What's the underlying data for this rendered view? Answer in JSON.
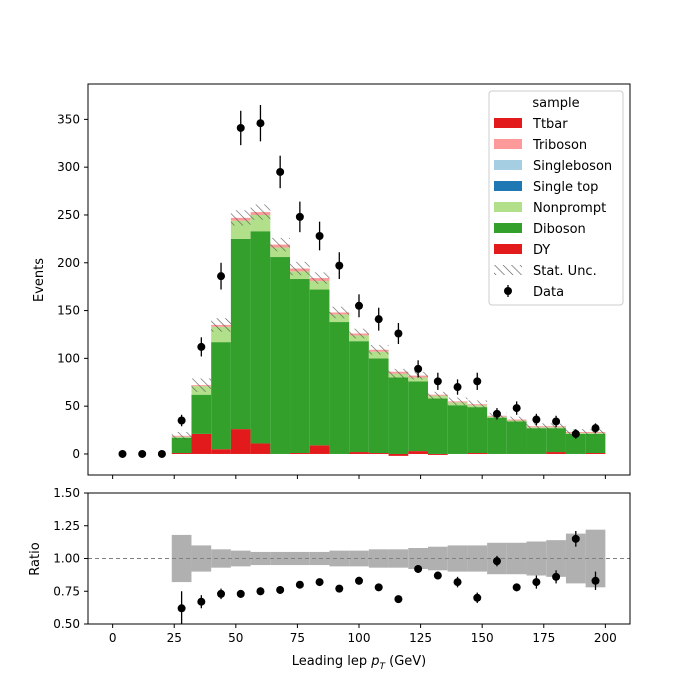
{
  "chart_data": {
    "type": "bar",
    "subtype": "stacked histogram with data points and ratio panel",
    "x_edges": [
      0,
      8,
      16,
      24,
      32,
      40,
      48,
      56,
      64,
      72,
      80,
      88,
      96,
      104,
      112,
      120,
      128,
      136,
      144,
      152,
      160,
      168,
      176,
      184,
      192,
      200
    ],
    "xlabel": "Leading lep $p_T$ (GeV)",
    "xlabel_main": "Leading lep ",
    "xlabel_sub": "T",
    "xlabel_unit": " (GeV)",
    "x_ticks": [
      "0",
      "25",
      "50",
      "75",
      "100",
      "125",
      "150",
      "175",
      "200"
    ],
    "x_tick_values": [
      0,
      25,
      50,
      75,
      100,
      125,
      150,
      175,
      200
    ],
    "xlim": [
      -10,
      210
    ],
    "top_panel": {
      "ylabel": "Events",
      "ylim": [
        -22,
        387
      ],
      "y_ticks": [
        "0",
        "50",
        "100",
        "150",
        "200",
        "250",
        "300",
        "350"
      ],
      "y_tick_values": [
        0,
        50,
        100,
        150,
        200,
        250,
        300,
        350
      ],
      "series": [
        {
          "name": "DY",
          "color": "#e31a1c",
          "values": [
            0,
            0,
            0,
            1,
            21,
            5,
            26,
            11,
            0,
            1,
            9,
            0,
            2,
            1,
            -2,
            3,
            -1,
            0,
            1,
            0,
            0,
            0,
            2,
            0,
            1
          ]
        },
        {
          "name": "Diboson",
          "color": "#33a02c",
          "values": [
            0,
            0,
            0,
            16,
            41,
            112,
            199,
            222,
            206,
            182,
            163,
            138,
            116,
            99,
            80,
            73,
            58,
            51,
            48,
            38,
            34,
            27,
            25,
            21,
            20
          ]
        },
        {
          "name": "Nonprompt",
          "color": "#b2df8a",
          "values": [
            0,
            0,
            0,
            1,
            9,
            16,
            19,
            17,
            10,
            8,
            9,
            8,
            6,
            7,
            4,
            4,
            3,
            3,
            2,
            1,
            1,
            1,
            1,
            1,
            1
          ]
        },
        {
          "name": "Single top",
          "color": "#1f78b4",
          "values": [
            0,
            0,
            0,
            0,
            0,
            0,
            0,
            0,
            0,
            0,
            0,
            0,
            0,
            0,
            0,
            0,
            0,
            0,
            0,
            0,
            0,
            0,
            0,
            0,
            0
          ]
        },
        {
          "name": "Singleboson",
          "color": "#a6cee3",
          "values": [
            0,
            0,
            0,
            0,
            0,
            0,
            0,
            0,
            0,
            0,
            0,
            0,
            0,
            0,
            0,
            0,
            0,
            0,
            0,
            0,
            0,
            0,
            0,
            0,
            0
          ]
        },
        {
          "name": "Triboson",
          "color": "#fb9a99",
          "values": [
            0,
            0,
            0,
            1,
            1,
            2,
            3,
            3,
            3,
            3,
            3,
            2,
            2,
            2,
            2,
            2,
            1,
            1,
            1,
            1,
            1,
            1,
            1,
            1,
            1
          ]
        },
        {
          "name": "Ttbar",
          "color": "#e31a1c",
          "values": [
            0,
            0,
            0,
            0,
            0,
            0,
            0,
            0,
            0,
            0,
            0,
            0,
            0,
            0,
            0,
            0,
            0,
            0,
            0,
            0,
            0,
            0,
            0,
            0,
            0
          ]
        }
      ],
      "stat_unc": [
        0,
        0,
        0,
        4,
        7,
        7,
        8,
        8,
        7,
        7,
        6,
        6,
        5,
        5,
        5,
        4,
        4,
        4,
        4,
        3,
        3,
        3,
        3,
        3,
        3
      ],
      "data": {
        "name": "Data",
        "x": [
          4,
          12,
          20,
          28,
          36,
          44,
          52,
          60,
          68,
          76,
          84,
          92,
          100,
          108,
          116,
          124,
          132,
          140,
          148,
          156,
          164,
          172,
          180,
          188,
          196
        ],
        "y": [
          0,
          0,
          0,
          35,
          112,
          186,
          341,
          346,
          295,
          248,
          228,
          197,
          155,
          141,
          126,
          89,
          76,
          70,
          76,
          42,
          48,
          36,
          34,
          21,
          27
        ],
        "err": [
          0,
          0,
          0,
          6,
          10,
          14,
          18,
          19,
          17,
          16,
          15,
          14,
          12,
          12,
          11,
          9,
          9,
          8,
          9,
          6,
          7,
          6,
          6,
          5,
          5
        ]
      },
      "legend": {
        "title": "sample",
        "position": "upper-right",
        "entries": [
          "Ttbar",
          "Triboson",
          "Singleboson",
          "Single top",
          "Nonprompt",
          "Diboson",
          "DY",
          "Stat. Unc.",
          "Data"
        ]
      }
    },
    "ratio_panel": {
      "ylabel": "Ratio",
      "ylim": [
        0.5,
        1.5
      ],
      "y_ticks": [
        "0.50",
        "0.75",
        "1.00",
        "1.25",
        "1.50"
      ],
      "y_tick_values": [
        0.5,
        0.75,
        1.0,
        1.25,
        1.5
      ],
      "reference_line": 1.0,
      "unc_band": [
        null,
        null,
        null,
        0.18,
        0.1,
        0.07,
        0.06,
        0.05,
        0.05,
        0.05,
        0.05,
        0.06,
        0.06,
        0.07,
        0.07,
        0.08,
        0.09,
        0.1,
        0.1,
        0.12,
        0.12,
        0.13,
        0.14,
        0.19,
        0.22
      ],
      "band_color": "#b0b0b0",
      "points": {
        "x": [
          28,
          36,
          44,
          52,
          60,
          68,
          76,
          84,
          92,
          100,
          108,
          116,
          124,
          132,
          140,
          148,
          156,
          164,
          172,
          180,
          188,
          196
        ],
        "y": [
          0.62,
          0.67,
          0.73,
          0.73,
          0.75,
          0.76,
          0.8,
          0.82,
          0.77,
          0.83,
          0.78,
          0.69,
          0.92,
          0.87,
          0.82,
          0.7,
          0.98,
          0.78,
          0.82,
          0.86,
          1.15,
          0.83
        ],
        "err": [
          0.13,
          0.05,
          0.04,
          0.03,
          0.03,
          0.03,
          0.02,
          0.02,
          0.02,
          0.03,
          0.02,
          0.02,
          0.03,
          0.03,
          0.04,
          0.04,
          0.04,
          0.03,
          0.05,
          0.05,
          0.06,
          0.07
        ]
      }
    }
  }
}
